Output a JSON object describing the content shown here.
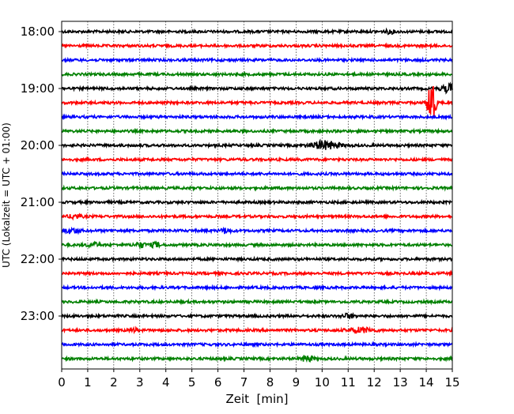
{
  "chart_data": {
    "type": "line",
    "title": "",
    "xlabel": "Zeit  [min]",
    "ylabel": "UTC (Lokalzeit = UTC + 01:00)",
    "xlim": [
      0,
      15
    ],
    "xticks": [
      "0",
      "1",
      "2",
      "3",
      "4",
      "5",
      "6",
      "7",
      "8",
      "9",
      "10",
      "11",
      "12",
      "13",
      "14",
      "15"
    ],
    "yticks": [
      "18:00",
      "19:00",
      "20:00",
      "21:00",
      "22:00",
      "23:00"
    ],
    "grid": "vertical dotted",
    "row_interval_min": 15,
    "start": "18:00",
    "rows": 24,
    "colors": [
      "#000000",
      "#ff0000",
      "#0000ff",
      "#008000"
    ],
    "noise_amplitude": 1,
    "events": [
      {
        "row": 0,
        "t": 12.6,
        "amp": 2,
        "dur": 0.3
      },
      {
        "row": 4,
        "t": 14.9,
        "amp": 5,
        "dur": 0.5
      },
      {
        "row": 5,
        "t": 14.2,
        "amp": 34,
        "dur": 0.25
      },
      {
        "row": 8,
        "t": 10.1,
        "amp": 5,
        "dur": 0.9
      },
      {
        "row": 13,
        "t": 0.5,
        "amp": 2.5,
        "dur": 0.4
      },
      {
        "row": 14,
        "t": 0.4,
        "amp": 3,
        "dur": 0.5
      },
      {
        "row": 14,
        "t": 6.3,
        "amp": 3,
        "dur": 0.3
      },
      {
        "row": 15,
        "t": 1.2,
        "amp": 2.5,
        "dur": 0.4
      },
      {
        "row": 15,
        "t": 3.0,
        "amp": 3,
        "dur": 0.4
      },
      {
        "row": 15,
        "t": 3.6,
        "amp": 3,
        "dur": 0.3
      },
      {
        "row": 20,
        "t": 11.0,
        "amp": 2.5,
        "dur": 0.4
      },
      {
        "row": 21,
        "t": 2.8,
        "amp": 2,
        "dur": 0.3
      },
      {
        "row": 21,
        "t": 11.5,
        "amp": 3,
        "dur": 0.8
      },
      {
        "row": 23,
        "t": 9.4,
        "amp": 3.5,
        "dur": 0.4
      }
    ]
  }
}
